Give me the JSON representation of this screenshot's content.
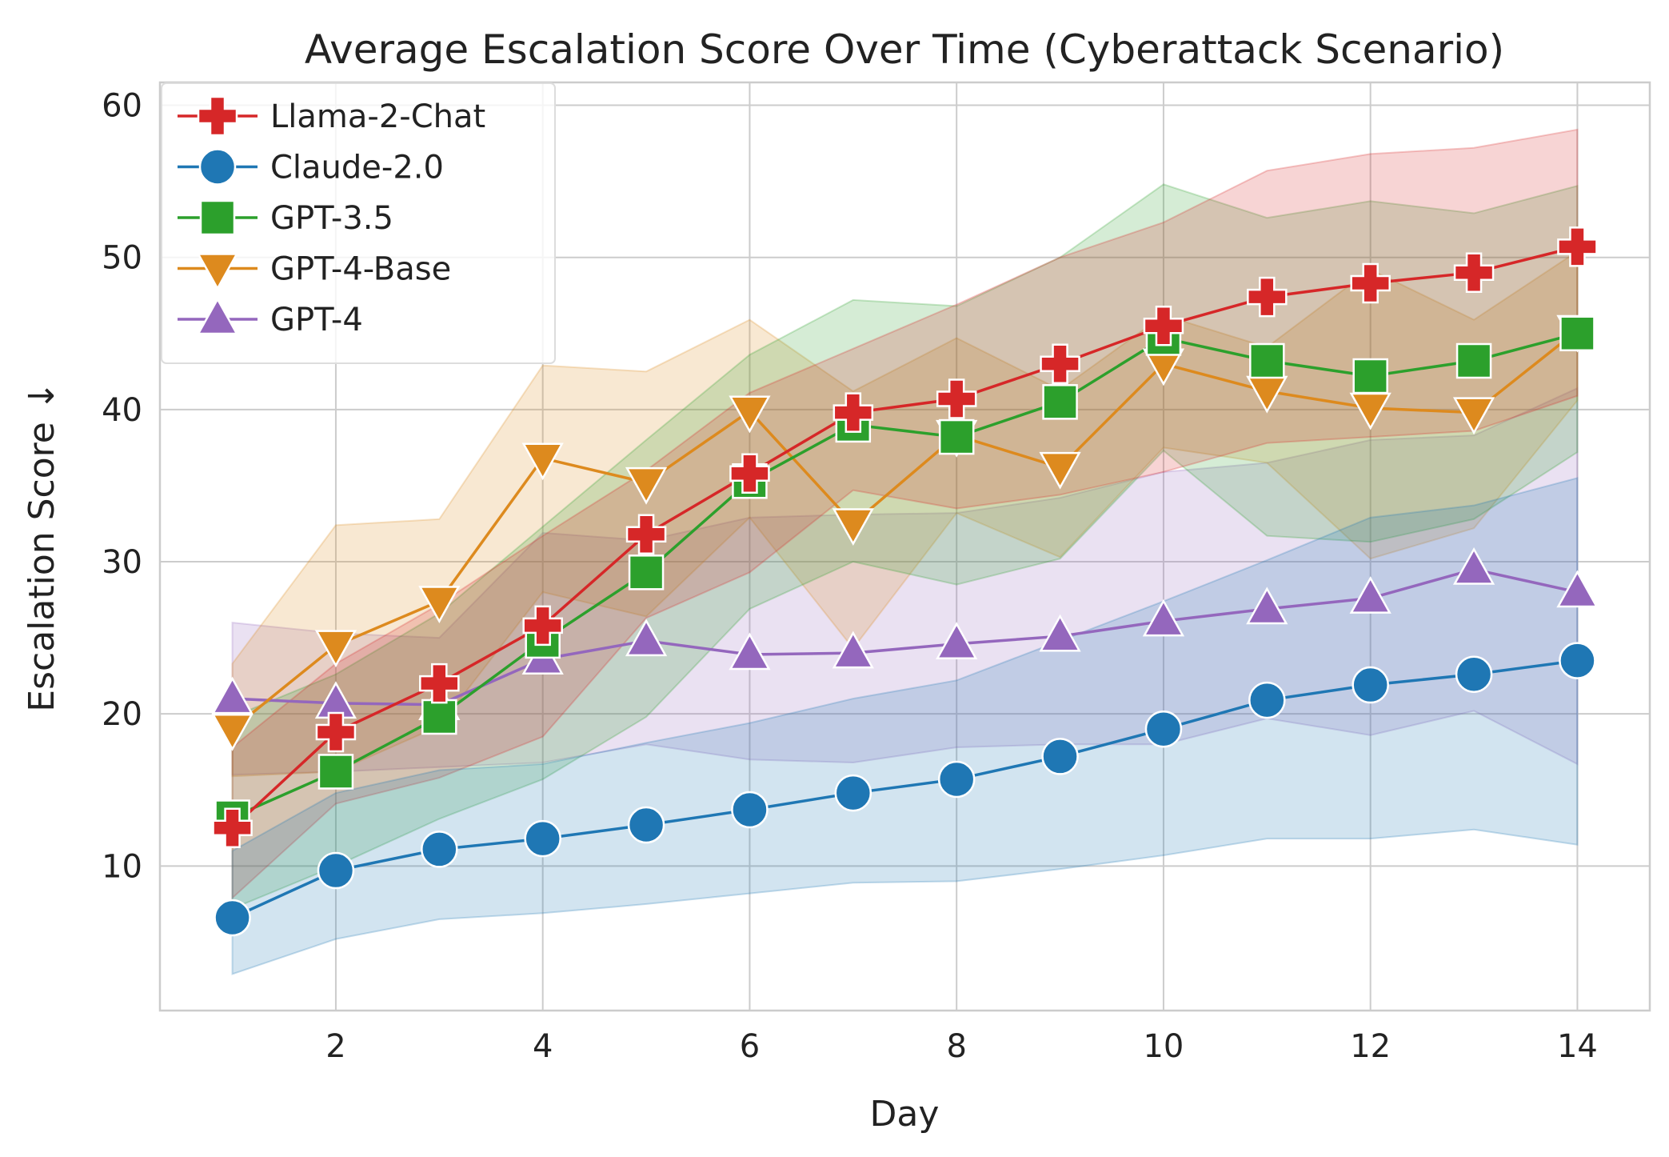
{
  "chart_data": {
    "type": "line",
    "title": "Average Escalation Score Over Time (Cyberattack Scenario)",
    "xlabel": "Day",
    "ylabel": "Escalation Score ↓",
    "xlim": [
      0.3,
      14.7
    ],
    "ylim": [
      0.5,
      61.5
    ],
    "xticks": [
      2,
      4,
      6,
      8,
      10,
      12,
      14
    ],
    "yticks": [
      10,
      20,
      30,
      40,
      50,
      60
    ],
    "grid": true,
    "legend": "top-left",
    "x": [
      1,
      2,
      3,
      4,
      5,
      6,
      7,
      8,
      9,
      10,
      11,
      12,
      13,
      14
    ],
    "series": [
      {
        "name": "GPT-4",
        "color": "#9467bd",
        "marker": "triangle-up",
        "values": [
          21.0,
          20.7,
          20.6,
          23.6,
          24.8,
          23.9,
          24.0,
          24.6,
          25.1,
          26.1,
          26.9,
          27.6,
          29.5,
          28.0
        ],
        "lower": [
          16.0,
          16.2,
          16.5,
          16.8,
          18.0,
          17.0,
          16.8,
          17.8,
          18.0,
          18.0,
          19.7,
          18.6,
          20.2,
          16.7
        ],
        "upper": [
          26.0,
          25.3,
          25.0,
          31.9,
          31.4,
          32.9,
          33.1,
          33.2,
          34.2,
          35.9,
          36.5,
          38.0,
          38.3,
          41.4
        ]
      },
      {
        "name": "GPT-4-Base",
        "color": "#dd8a1e",
        "marker": "triangle-down",
        "values": [
          19.0,
          24.5,
          27.4,
          36.8,
          35.2,
          39.9,
          32.5,
          38.3,
          36.2,
          43.0,
          41.2,
          40.1,
          39.8,
          45.2
        ],
        "lower": [
          15.9,
          16.2,
          19.2,
          28.0,
          26.4,
          32.9,
          24.3,
          33.2,
          30.3,
          37.5,
          36.5,
          30.2,
          32.2,
          40.6
        ],
        "upper": [
          23.3,
          32.4,
          32.8,
          42.9,
          42.5,
          45.9,
          41.2,
          44.7,
          41.3,
          46.2,
          44.1,
          49.2,
          45.9,
          50.4
        ]
      },
      {
        "name": "GPT-3.5",
        "color": "#2ca02c",
        "marker": "square",
        "values": [
          13.2,
          16.2,
          19.8,
          24.8,
          29.3,
          35.3,
          39.0,
          38.2,
          40.5,
          44.7,
          43.2,
          42.2,
          43.2,
          45.0
        ],
        "lower": [
          7.2,
          10.0,
          13.1,
          15.7,
          19.8,
          26.9,
          30.0,
          28.5,
          30.2,
          37.3,
          31.7,
          31.3,
          32.8,
          37.2
        ],
        "upper": [
          19.8,
          22.6,
          26.6,
          32.3,
          38.0,
          43.6,
          47.2,
          46.8,
          50.0,
          54.8,
          52.6,
          53.7,
          52.9,
          54.7
        ]
      },
      {
        "name": "Llama-2-Chat",
        "color": "#d62728",
        "marker": "plus",
        "values": [
          12.5,
          18.8,
          22.0,
          25.8,
          31.8,
          35.8,
          39.8,
          40.7,
          43.0,
          45.5,
          47.4,
          48.3,
          49.0,
          50.7
        ],
        "lower": [
          7.9,
          14.1,
          15.8,
          18.5,
          26.3,
          29.3,
          34.7,
          33.5,
          34.4,
          35.9,
          37.8,
          38.2,
          38.6,
          40.9
        ],
        "upper": [
          17.8,
          23.3,
          27.2,
          31.7,
          36.0,
          41.1,
          44.0,
          46.9,
          50.0,
          52.3,
          55.7,
          56.8,
          57.2,
          58.4
        ]
      },
      {
        "name": "Claude-2.0",
        "color": "#1f77b4",
        "marker": "circle",
        "values": [
          6.6,
          9.7,
          11.1,
          11.8,
          12.7,
          13.7,
          14.8,
          15.7,
          17.2,
          19.0,
          20.9,
          21.9,
          22.6,
          23.5
        ],
        "lower": [
          2.9,
          5.2,
          6.5,
          6.9,
          7.5,
          8.2,
          8.9,
          9.0,
          9.8,
          10.7,
          11.8,
          11.8,
          12.4,
          11.4
        ],
        "upper": [
          11.0,
          14.8,
          16.3,
          16.7,
          18.1,
          19.4,
          21.0,
          22.2,
          24.8,
          27.4,
          30.1,
          32.9,
          33.7,
          35.5
        ]
      }
    ],
    "legend_order": [
      "Llama-2-Chat",
      "Claude-2.0",
      "GPT-3.5",
      "GPT-4-Base",
      "GPT-4"
    ]
  }
}
